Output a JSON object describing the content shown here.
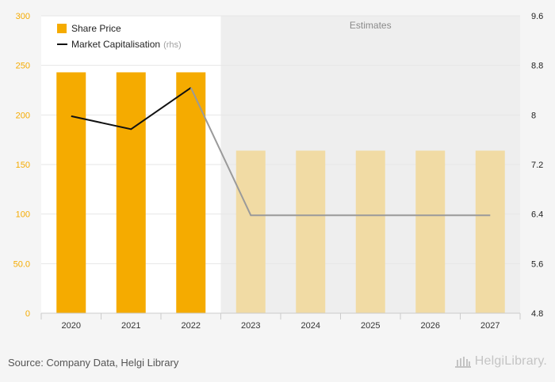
{
  "chart_data": {
    "type": "bar",
    "categories": [
      "2020",
      "2021",
      "2022",
      "2023",
      "2024",
      "2025",
      "2026",
      "2027"
    ],
    "estimate_start_index": 3,
    "estimates_label": "Estimates",
    "series": [
      {
        "name": "Share Price",
        "kind": "bar",
        "axis": "left",
        "values": [
          243,
          243,
          243,
          164,
          164,
          164,
          164,
          164
        ],
        "color": "#f5ab00",
        "estimate_color": "#f1dba4"
      },
      {
        "name": "Market Capitalisation",
        "suffix": "(rhs)",
        "kind": "line",
        "axis": "right",
        "values": [
          7.98,
          7.77,
          8.44,
          6.38,
          6.38,
          6.38,
          6.38,
          6.38
        ],
        "color": "#111111",
        "estimate_color": "#9a9a9a"
      }
    ],
    "left_axis": {
      "ylim": [
        0,
        300
      ],
      "ticks": [
        0,
        50,
        100,
        150,
        200,
        250,
        300
      ],
      "tick_labels": [
        "0",
        "50.0",
        "100",
        "150",
        "200",
        "250",
        "300"
      ],
      "color": "#f5ab00"
    },
    "right_axis": {
      "ylim": [
        4.8,
        9.6
      ],
      "ticks": [
        4.8,
        5.6,
        6.4,
        7.2,
        8,
        8.8,
        9.6
      ],
      "tick_labels": [
        "4.8",
        "5.6",
        "6.4",
        "7.2",
        "8",
        "8.8",
        "9.6"
      ],
      "color": "#222222"
    },
    "grid": true,
    "legend_position": "top-left"
  },
  "footer": {
    "source": "Source: Company Data, Helgi Library",
    "brand": "HelgiLibrary."
  }
}
